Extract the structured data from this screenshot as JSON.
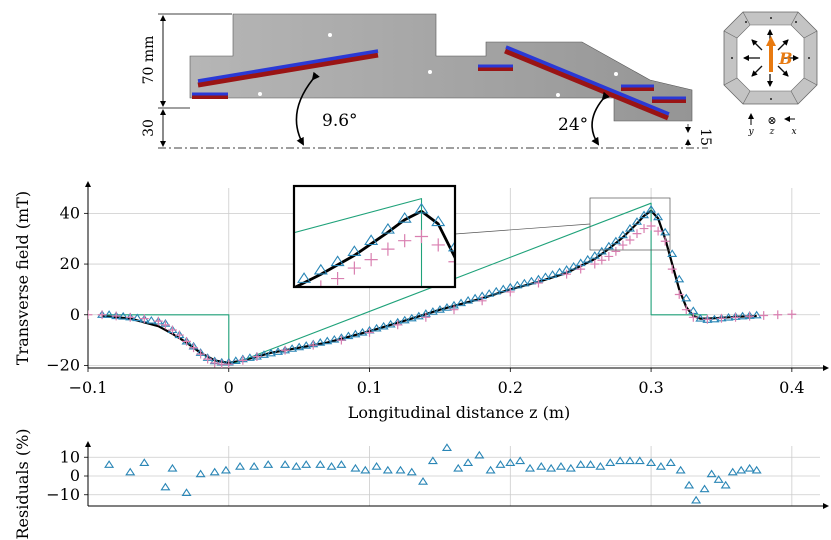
{
  "colors": {
    "model": "#000000",
    "hard_edge": "#1fa27a",
    "measurement_a": "#2a86b6",
    "measurement_b": "#d97fb0",
    "plate": "#a4a4a4",
    "bar_blue": "#2a39d6",
    "bar_red": "#9a1414",
    "grid": "#cccccc",
    "B_arrow": "#e87a10"
  },
  "diagram": {
    "height_label": "70 mm",
    "gap_label": "30",
    "offset_label": "15",
    "angle1_label": "9.6°",
    "angle2_label": "24°",
    "B_label": "B",
    "axis_labels": {
      "y": "y",
      "z": "z",
      "x": "x",
      "z_symbol": "⊗"
    }
  },
  "chart_data": [
    {
      "type": "line",
      "xlabel": "Longitudinal distance z (m)",
      "ylabel": "Transverse field (mT)",
      "xlim": [
        -0.1,
        0.42
      ],
      "ylim": [
        -21,
        50
      ],
      "xticks": [
        -0.1,
        0,
        0.1,
        0.2,
        0.3,
        0.4
      ],
      "xtick_labels": [
        "−0.1",
        "0",
        "0.1",
        "0.2",
        "0.3",
        "0.4"
      ],
      "yticks": [
        -20,
        0,
        20,
        40
      ],
      "ytick_labels": [
        "−20",
        "0",
        "20",
        "40"
      ],
      "grid": true,
      "series": [
        {
          "key": "model",
          "style": "line",
          "x": [
            -0.09,
            -0.07,
            -0.05,
            -0.04,
            -0.03,
            -0.02,
            -0.01,
            0.0,
            0.01,
            0.02,
            0.03,
            0.05,
            0.07,
            0.1,
            0.13,
            0.15,
            0.18,
            0.2,
            0.22,
            0.24,
            0.26,
            0.27,
            0.28,
            0.29,
            0.295,
            0.3,
            0.305,
            0.31,
            0.315,
            0.32,
            0.325,
            0.33,
            0.335,
            0.34,
            0.35,
            0.36,
            0.375
          ],
          "y": [
            -0.5,
            -1.5,
            -4.5,
            -7.5,
            -11,
            -15,
            -18,
            -19,
            -18,
            -16.5,
            -15,
            -13,
            -11,
            -6.5,
            -1.5,
            2,
            6.5,
            10,
            13,
            16.5,
            22,
            26,
            30.5,
            36,
            39,
            41,
            38,
            30,
            20,
            10,
            3,
            -0.5,
            -1.5,
            -1.5,
            -1.2,
            -0.8,
            -0.5
          ]
        },
        {
          "key": "hard_edge",
          "style": "step",
          "x": [
            -0.09,
            0.0,
            0.0,
            0.3,
            0.3,
            0.34
          ],
          "y": [
            0,
            0,
            -20,
            44,
            0,
            0
          ]
        },
        {
          "key": "measurement_a",
          "style": "marker-triangle",
          "x": [
            -0.09,
            -0.085,
            -0.08,
            -0.075,
            -0.07,
            -0.065,
            -0.06,
            -0.055,
            -0.05,
            -0.045,
            -0.04,
            -0.035,
            -0.03,
            -0.025,
            -0.02,
            -0.015,
            -0.01,
            -0.005,
            0.0,
            0.005,
            0.01,
            0.015,
            0.02,
            0.025,
            0.03,
            0.035,
            0.04,
            0.045,
            0.05,
            0.055,
            0.06,
            0.065,
            0.07,
            0.075,
            0.08,
            0.085,
            0.09,
            0.095,
            0.1,
            0.105,
            0.11,
            0.115,
            0.12,
            0.125,
            0.13,
            0.135,
            0.14,
            0.145,
            0.15,
            0.155,
            0.16,
            0.165,
            0.17,
            0.175,
            0.18,
            0.185,
            0.19,
            0.195,
            0.2,
            0.205,
            0.21,
            0.215,
            0.22,
            0.225,
            0.23,
            0.235,
            0.24,
            0.245,
            0.25,
            0.255,
            0.26,
            0.265,
            0.27,
            0.275,
            0.28,
            0.285,
            0.29,
            0.295,
            0.3,
            0.305,
            0.31,
            0.315,
            0.32,
            0.325,
            0.33,
            0.335,
            0.34,
            0.345,
            0.35,
            0.355,
            0.36,
            0.365,
            0.37,
            0.375
          ],
          "y": [
            0,
            0,
            -0.5,
            -0.7,
            -1,
            -1.3,
            -1.8,
            -2.3,
            -2.6,
            -3.5,
            -6,
            -8,
            -10.5,
            -12.5,
            -15,
            -17,
            -18.3,
            -18.8,
            -18.8,
            -18.2,
            -17.5,
            -17,
            -16.5,
            -15.8,
            -15.2,
            -14.6,
            -14,
            -13.4,
            -12.8,
            -12.2,
            -11.6,
            -11,
            -10.4,
            -9.8,
            -9.1,
            -8.4,
            -7.7,
            -7,
            -6.2,
            -5.4,
            -4.6,
            -3.8,
            -3,
            -2.2,
            -1.4,
            -0.6,
            0.4,
            1.2,
            2,
            2.8,
            3.7,
            4.6,
            5.6,
            6.5,
            7.4,
            8.3,
            9.2,
            10.1,
            10.8,
            11.6,
            12.4,
            13.2,
            14,
            14.9,
            15.8,
            16.8,
            17.8,
            19,
            20.4,
            21.8,
            23.3,
            25,
            27,
            29,
            31.4,
            34,
            36.7,
            39.3,
            41.5,
            38.5,
            32.5,
            24,
            14,
            6.5,
            1.5,
            -1.5,
            -2,
            -1.8,
            -1.4,
            -1.1,
            -0.8,
            -0.6,
            -0.4,
            -0.2
          ]
        },
        {
          "key": "measurement_b",
          "style": "marker-plus",
          "x": [
            -0.1,
            -0.09,
            -0.08,
            -0.07,
            -0.06,
            -0.05,
            -0.045,
            -0.04,
            -0.035,
            -0.03,
            -0.025,
            -0.02,
            -0.015,
            -0.01,
            -0.005,
            0.0,
            0.01,
            0.02,
            0.04,
            0.06,
            0.08,
            0.1,
            0.12,
            0.14,
            0.16,
            0.18,
            0.2,
            0.22,
            0.24,
            0.25,
            0.26,
            0.265,
            0.27,
            0.275,
            0.28,
            0.285,
            0.29,
            0.295,
            0.3,
            0.305,
            0.31,
            0.315,
            0.32,
            0.325,
            0.33,
            0.34,
            0.35,
            0.36,
            0.37,
            0.38,
            0.39,
            0.4
          ],
          "y": [
            0,
            0,
            -0.5,
            -1,
            -1.5,
            -2.5,
            -4,
            -6,
            -8,
            -10.5,
            -13,
            -15.5,
            -17.5,
            -19,
            -19.5,
            -19.5,
            -18,
            -16.5,
            -14,
            -12,
            -10,
            -7,
            -4,
            -1,
            2,
            5.5,
            9,
            12.5,
            16,
            18,
            20,
            21.5,
            23,
            25,
            27.5,
            29.5,
            32,
            34,
            35,
            33,
            29,
            18,
            8,
            2,
            -1,
            -1.8,
            -1.4,
            -1,
            -0.6,
            -0.3,
            0,
            0.2
          ]
        }
      ]
    },
    {
      "type": "scatter",
      "ylabel": "Residuals (%)",
      "xlim": [
        -0.1,
        0.42
      ],
      "ylim": [
        -16,
        16
      ],
      "yticks": [
        -10,
        0,
        10
      ],
      "ytick_labels": [
        "−10",
        "0",
        "10"
      ],
      "grid": true,
      "series": [
        {
          "key": "measurement_a",
          "style": "marker-triangle",
          "x": [
            -0.085,
            -0.07,
            -0.06,
            -0.045,
            -0.04,
            -0.03,
            -0.02,
            -0.01,
            -0.002,
            0.008,
            0.018,
            0.028,
            0.04,
            0.048,
            0.055,
            0.065,
            0.073,
            0.08,
            0.09,
            0.097,
            0.105,
            0.113,
            0.122,
            0.13,
            0.138,
            0.145,
            0.155,
            0.163,
            0.17,
            0.178,
            0.186,
            0.193,
            0.2,
            0.207,
            0.214,
            0.222,
            0.229,
            0.236,
            0.243,
            0.25,
            0.257,
            0.264,
            0.271,
            0.278,
            0.285,
            0.292,
            0.3,
            0.307,
            0.314,
            0.321,
            0.327,
            0.332,
            0.338,
            0.343,
            0.348,
            0.353,
            0.358,
            0.364,
            0.37,
            0.375
          ],
          "y": [
            6,
            2,
            7,
            -6,
            4,
            -9,
            1,
            2,
            3,
            5,
            5,
            6,
            6,
            5,
            6,
            6,
            5,
            6,
            4,
            3,
            5,
            3,
            3,
            2,
            -3,
            8,
            15,
            4,
            7,
            11,
            3,
            6,
            7,
            8,
            4,
            5,
            4,
            5,
            4,
            6,
            6,
            5,
            7,
            8,
            8,
            8,
            7,
            5,
            7,
            3,
            -5,
            -13,
            -7,
            1,
            -2,
            -5,
            2,
            3,
            4,
            3
          ]
        }
      ]
    }
  ]
}
